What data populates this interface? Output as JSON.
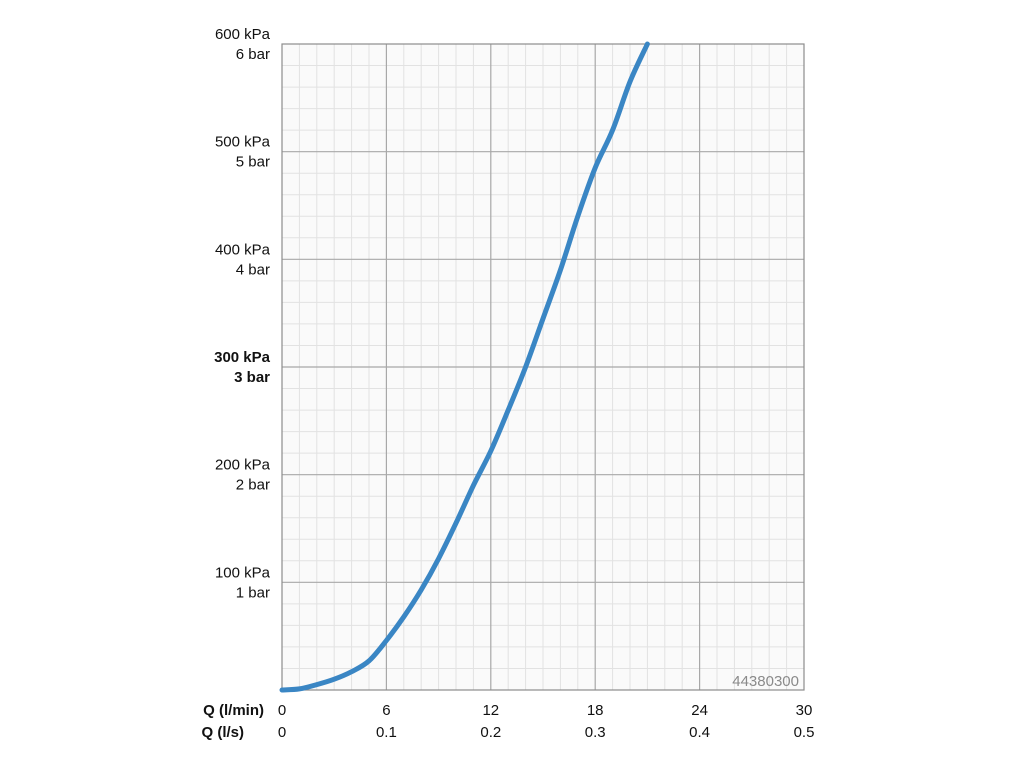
{
  "chart_data": {
    "type": "line",
    "title": "",
    "product_code": "44380300",
    "x_axes": [
      {
        "label": "Q (l/min)",
        "ticks": [
          "0",
          "6",
          "12",
          "18",
          "24",
          "30"
        ]
      },
      {
        "label": "Q (l/s)",
        "ticks": [
          "0",
          "0.1",
          "0.2",
          "0.3",
          "0.4",
          "0.5"
        ]
      }
    ],
    "y_ticks": [
      {
        "value": 100,
        "kpa": "100 kPa",
        "bar": "1 bar",
        "bold": false
      },
      {
        "value": 200,
        "kpa": "200 kPa",
        "bar": "2 bar",
        "bold": false
      },
      {
        "value": 300,
        "kpa": "300 kPa",
        "bar": "3 bar",
        "bold": true
      },
      {
        "value": 400,
        "kpa": "400 kPa",
        "bar": "4 bar",
        "bold": false
      },
      {
        "value": 500,
        "kpa": "500 kPa",
        "bar": "5 bar",
        "bold": false
      },
      {
        "value": 600,
        "kpa": "600 kPa",
        "bar": "6 bar",
        "bold": false
      }
    ],
    "xlim": [
      0,
      30
    ],
    "ylim": [
      0,
      600
    ],
    "grid": true,
    "series": [
      {
        "color": "#3a86c4",
        "x": [
          0,
          1,
          2,
          3,
          4,
          5,
          6,
          7,
          8,
          9,
          10,
          11,
          12,
          13,
          14,
          15,
          16,
          17,
          18,
          19,
          20,
          21
        ],
        "y": [
          0,
          1,
          5,
          10,
          17,
          27,
          46,
          68,
          93,
          122,
          155,
          190,
          222,
          260,
          300,
          345,
          390,
          440,
          485,
          520,
          565,
          600
        ]
      }
    ]
  }
}
